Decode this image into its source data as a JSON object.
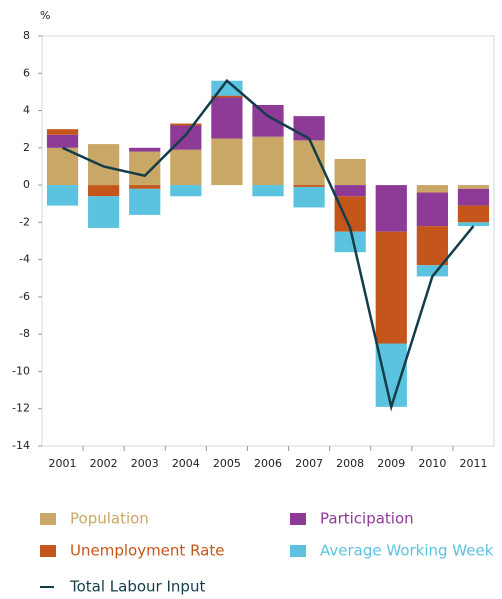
{
  "chart_data": {
    "type": "bar",
    "y_unit": "%",
    "categories": [
      "2001",
      "2002",
      "2003",
      "2004",
      "2005",
      "2006",
      "2007",
      "2008",
      "2009",
      "2010",
      "2011"
    ],
    "ylim": [
      -14,
      8
    ],
    "yticks": [
      -14,
      -12,
      -10,
      -8,
      -6,
      -4,
      -2,
      0,
      2,
      4,
      6,
      8
    ],
    "series": [
      {
        "name": "Population",
        "color": "#c9a766",
        "values": [
          2.0,
          2.2,
          1.8,
          1.9,
          2.5,
          2.6,
          2.4,
          1.4,
          0,
          -0.4,
          -0.2
        ]
      },
      {
        "name": "Participation",
        "color": "#8e3a97",
        "values": [
          0.7,
          0,
          0.2,
          1.3,
          2.2,
          1.7,
          1.3,
          -0.6,
          -2.5,
          -1.8,
          -0.9
        ]
      },
      {
        "name": "Unemployment Rate",
        "color": "#c4561b",
        "values": [
          0.3,
          -0.6,
          -0.2,
          0.1,
          0.1,
          0,
          -0.1,
          -1.9,
          -6.0,
          -2.1,
          -0.9
        ]
      },
      {
        "name": "Average Working Week",
        "color": "#5bc3e0",
        "values": [
          -1.1,
          -1.7,
          -1.4,
          -0.6,
          0.8,
          -0.6,
          -1.1,
          -1.1,
          -3.4,
          -0.6,
          -0.2
        ]
      },
      {
        "name": "Total Labour Input",
        "color": "#143d4a",
        "type": "line",
        "values": [
          2.0,
          1.0,
          0.5,
          2.7,
          5.6,
          3.7,
          2.5,
          -2.3,
          -11.9,
          -4.9,
          -2.2
        ]
      }
    ]
  }
}
